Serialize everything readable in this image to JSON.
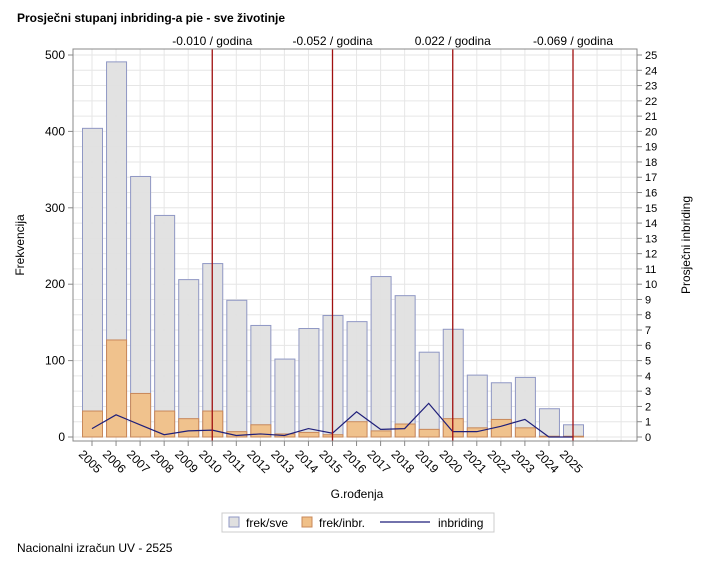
{
  "title": "Prosječni stupanj inbriding-a pie - sve životinje",
  "footer": "Nacionalni izračun UV - 2525",
  "chart_data": {
    "type": "bar",
    "xlabel": "G.rođenja",
    "ylabel": "Frekvencija",
    "y2label": "Prosječni inbriding",
    "ylim": [
      0,
      500
    ],
    "y2lim": [
      0,
      25
    ],
    "yticks": [
      0,
      100,
      200,
      300,
      400,
      500
    ],
    "y2ticks": [
      0,
      1,
      2,
      3,
      4,
      5,
      6,
      7,
      8,
      9,
      10,
      11,
      12,
      13,
      14,
      15,
      16,
      17,
      18,
      19,
      20,
      21,
      22,
      23,
      24,
      25
    ],
    "grid": true,
    "legend_position": "bottom",
    "categories": [
      "2005",
      "2006",
      "2007",
      "2008",
      "2009",
      "2010",
      "2011",
      "2012",
      "2013",
      "2014",
      "2015",
      "2016",
      "2017",
      "2018",
      "2019",
      "2020",
      "2021",
      "2022",
      "2023",
      "2024",
      "2025"
    ],
    "series": [
      {
        "name": "frek/sve",
        "type": "bar",
        "axis": "left",
        "color": "#e0e0e0",
        "edge": "#8f97c4",
        "values": [
          404,
          491,
          341,
          290,
          206,
          227,
          179,
          146,
          102,
          142,
          159,
          151,
          210,
          185,
          111,
          141,
          81,
          71,
          78,
          37,
          16
        ]
      },
      {
        "name": "frek/inbr.",
        "type": "bar",
        "axis": "left",
        "color": "#f0c088",
        "edge": "#c8885a",
        "values": [
          34,
          127,
          57,
          34,
          24,
          34,
          7,
          16,
          4,
          6,
          3,
          20,
          8,
          17,
          10,
          24,
          12,
          23,
          12,
          1,
          1
        ]
      },
      {
        "name": "inbriding",
        "type": "line",
        "axis": "right",
        "color": "#1f1f7a",
        "values": [
          0.55,
          1.45,
          0.8,
          0.15,
          0.4,
          0.45,
          0.1,
          0.2,
          0.1,
          0.55,
          0.25,
          1.65,
          0.5,
          0.55,
          2.2,
          0.35,
          0.35,
          0.7,
          1.15,
          0,
          0
        ]
      }
    ],
    "reference_lines": [
      {
        "at": "2010",
        "label": "-0.010 / godina"
      },
      {
        "at": "2015",
        "label": "-0.052 / godina"
      },
      {
        "at": "2020",
        "label": "0.022 / godina"
      },
      {
        "at": "2025",
        "label": "-0.069 / godina"
      }
    ],
    "reference_color": "#a01010"
  }
}
